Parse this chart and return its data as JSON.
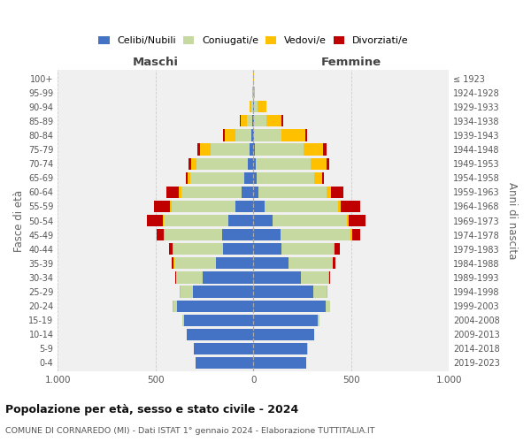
{
  "age_groups": [
    "0-4",
    "5-9",
    "10-14",
    "15-19",
    "20-24",
    "25-29",
    "30-34",
    "35-39",
    "40-44",
    "45-49",
    "50-54",
    "55-59",
    "60-64",
    "65-69",
    "70-74",
    "75-79",
    "80-84",
    "85-89",
    "90-94",
    "95-99",
    "100+"
  ],
  "birth_years": [
    "2019-2023",
    "2014-2018",
    "2009-2013",
    "2004-2008",
    "1999-2003",
    "1994-1998",
    "1989-1993",
    "1984-1988",
    "1979-1983",
    "1974-1978",
    "1969-1973",
    "1964-1968",
    "1959-1963",
    "1954-1958",
    "1949-1953",
    "1944-1948",
    "1939-1943",
    "1934-1938",
    "1929-1933",
    "1924-1928",
    "≤ 1923"
  ],
  "male_celibi": [
    295,
    305,
    340,
    355,
    390,
    310,
    260,
    190,
    155,
    160,
    130,
    90,
    60,
    45,
    30,
    20,
    10,
    5,
    2,
    0,
    0
  ],
  "male_coniugati": [
    2,
    2,
    2,
    8,
    20,
    65,
    135,
    215,
    255,
    295,
    330,
    330,
    310,
    280,
    260,
    200,
    80,
    30,
    8,
    2,
    0
  ],
  "male_vedovi": [
    0,
    0,
    0,
    0,
    2,
    2,
    2,
    2,
    2,
    2,
    5,
    5,
    10,
    12,
    30,
    55,
    55,
    30,
    10,
    2,
    0
  ],
  "male_divorziati": [
    0,
    0,
    0,
    0,
    2,
    2,
    5,
    12,
    20,
    40,
    80,
    85,
    65,
    10,
    12,
    12,
    10,
    5,
    0,
    0,
    0
  ],
  "female_celibi": [
    270,
    275,
    310,
    330,
    370,
    305,
    245,
    180,
    145,
    140,
    100,
    55,
    25,
    15,
    12,
    8,
    5,
    5,
    2,
    0,
    0
  ],
  "female_coniugati": [
    2,
    2,
    2,
    10,
    20,
    70,
    140,
    225,
    265,
    355,
    380,
    380,
    350,
    295,
    280,
    250,
    140,
    60,
    20,
    2,
    0
  ],
  "female_vedovi": [
    0,
    0,
    0,
    0,
    2,
    2,
    2,
    2,
    5,
    8,
    8,
    10,
    20,
    40,
    80,
    100,
    120,
    80,
    45,
    5,
    2
  ],
  "female_divorziati": [
    0,
    0,
    0,
    0,
    2,
    2,
    5,
    12,
    25,
    45,
    85,
    100,
    65,
    12,
    15,
    18,
    10,
    5,
    0,
    0,
    0
  ],
  "colors": {
    "celibi": "#4472c4",
    "coniugati": "#c6d9a0",
    "vedovi": "#ffc000",
    "divorziati": "#c00000"
  },
  "title": "Popolazione per età, sesso e stato civile - 2024",
  "subtitle": "COMUNE DI CORNAREDO (MI) - Dati ISTAT 1° gennaio 2024 - Elaborazione TUTTITALIA.IT",
  "ylabel": "Fasce di età",
  "ylabel_right": "Anni di nascita",
  "xlabel_left": "Maschi",
  "xlabel_right": "Femmine",
  "xlim": 1000,
  "bg_color": "#f0f0f0",
  "grid_color": "#cccccc"
}
